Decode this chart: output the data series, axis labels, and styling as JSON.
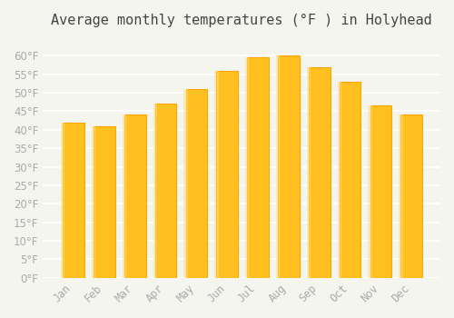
{
  "title": "Average monthly temperatures (°F ) in Holyhead",
  "months": [
    "Jan",
    "Feb",
    "Mar",
    "Apr",
    "May",
    "Jun",
    "Jul",
    "Aug",
    "Sep",
    "Oct",
    "Nov",
    "Dec"
  ],
  "values": [
    42,
    41,
    44,
    47,
    51,
    56,
    59.5,
    60,
    57,
    53,
    46.5,
    44
  ],
  "bar_color": "#FFC020",
  "bar_edge_color": "#FFA500",
  "background_color": "#F5F5F0",
  "grid_color": "#FFFFFF",
  "text_color": "#AAAAAA",
  "ylim": [
    0,
    65
  ],
  "yticks": [
    0,
    5,
    10,
    15,
    20,
    25,
    30,
    35,
    40,
    45,
    50,
    55,
    60
  ],
  "title_fontsize": 11,
  "tick_fontsize": 8.5
}
